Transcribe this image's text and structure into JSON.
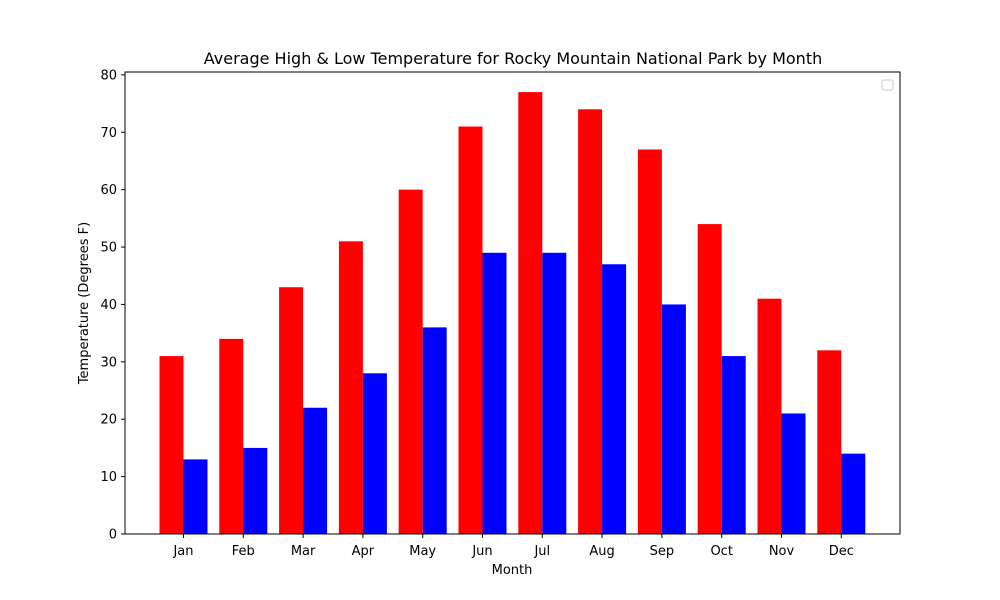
{
  "chart_data": {
    "type": "bar",
    "title": "Average High & Low Temperature for Rocky Mountain National Park by Month",
    "xlabel": "Month",
    "ylabel": "Temperature (Degrees F)",
    "categories": [
      "Jan",
      "Feb",
      "Mar",
      "Apr",
      "May",
      "Jun",
      "Jul",
      "Aug",
      "Sep",
      "Oct",
      "Nov",
      "Dec"
    ],
    "series": [
      {
        "values": [
          31,
          34,
          43,
          51,
          60,
          71,
          77,
          74,
          67,
          54,
          41,
          32
        ],
        "color": "#ff0000"
      },
      {
        "values": [
          13,
          15,
          22,
          28,
          36,
          49,
          49,
          47,
          40,
          31,
          21,
          14
        ],
        "color": "#0000ff"
      }
    ],
    "ylim": [
      0,
      80.5
    ],
    "yticks": [
      0,
      10,
      20,
      30,
      40,
      50,
      60,
      70,
      80
    ],
    "grid": false,
    "legend": {
      "placement": "top-right",
      "entries": []
    }
  }
}
